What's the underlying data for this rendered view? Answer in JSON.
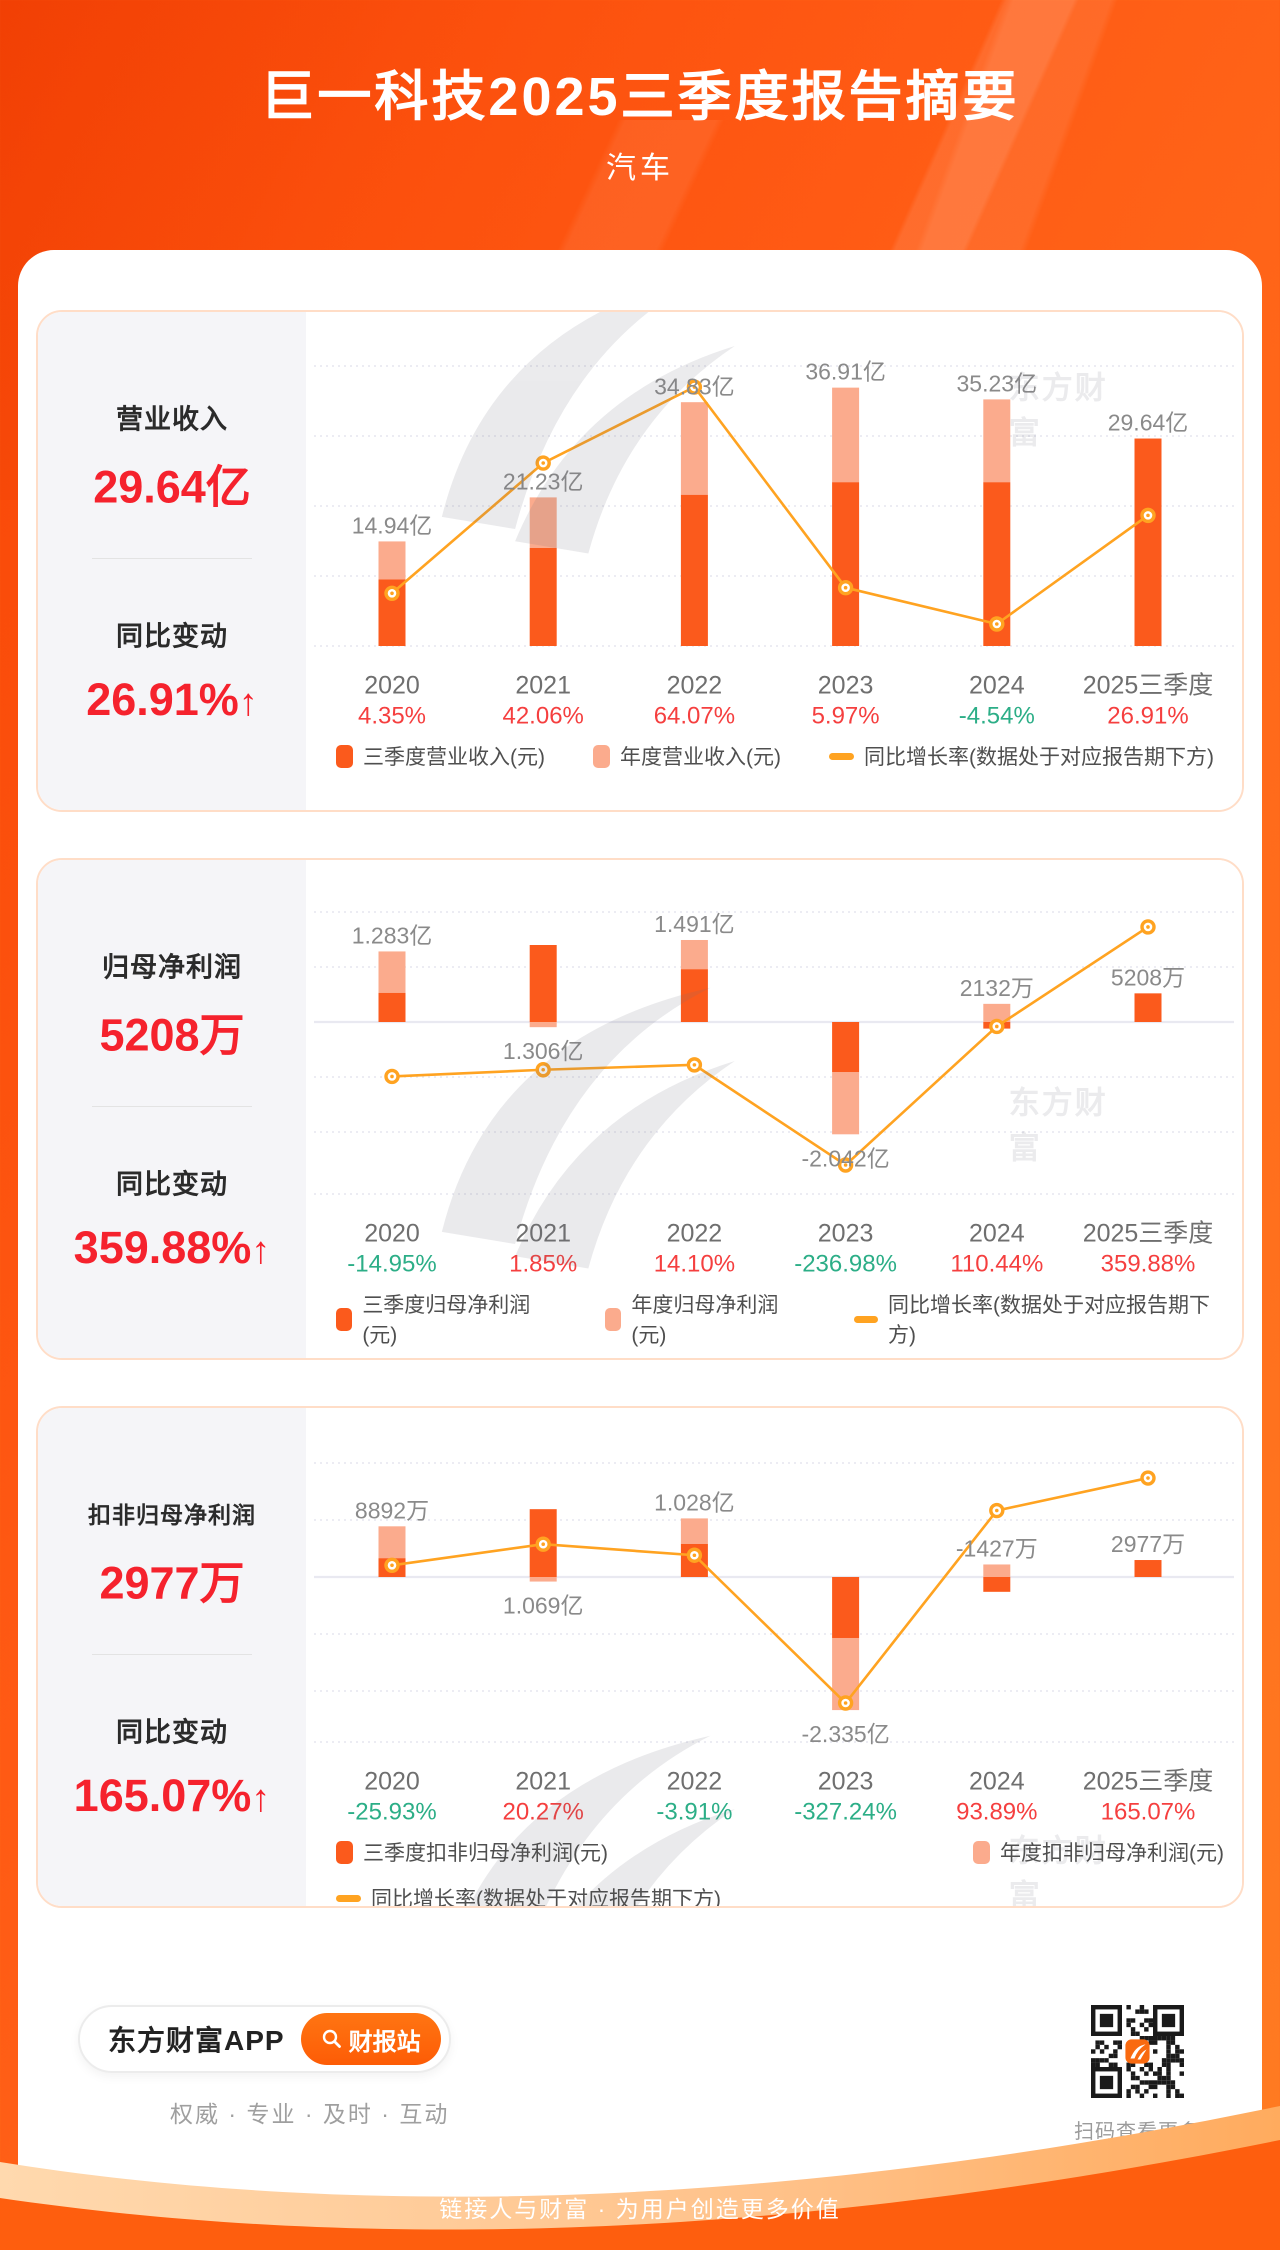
{
  "header": {
    "title": "巨一科技2025三季度报告摘要",
    "subtitle": "汽车"
  },
  "watermark_text": "东方财富",
  "colors": {
    "q3_bar": "#fb5a1c",
    "annual_bar": "#fbab8d",
    "growth_line": "#ffa321",
    "red": "#f53f3f",
    "green": "#2cae87",
    "metric_red": "#f5222d",
    "grid": "#e5e5ef",
    "zero_line": "#e9e9f1"
  },
  "cards": [
    {
      "metric_label": "营业收入",
      "metric_value": "29.64亿",
      "change_label": "同比变动",
      "change_value": "26.91%",
      "change_arrow": "↑"
    },
    {
      "metric_label": "归母净利润",
      "metric_value": "5208万",
      "change_label": "同比变动",
      "change_value": "359.88%",
      "change_arrow": "↑"
    },
    {
      "metric_label": "扣非归母净利润",
      "metric_value": "2977万",
      "change_label": "同比变动",
      "change_value": "165.07%",
      "change_arrow": "↑"
    }
  ],
  "chart_data": [
    {
      "type": "bar+line",
      "name": "revenue-chart",
      "title": "营业收入",
      "unit": "亿元",
      "categories": [
        "2020",
        "2021",
        "2022",
        "2023",
        "2024",
        "2025三季度"
      ],
      "series": [
        {
          "name": "三季度营业收入(元)",
          "role": "q3_bar",
          "values": [
            9.5,
            14.0,
            21.6,
            23.4,
            23.4,
            29.64
          ],
          "estimated_from_pixels": true
        },
        {
          "name": "年度营业收入(元)",
          "role": "annual_bar",
          "values": [
            14.94,
            21.23,
            34.83,
            36.91,
            35.23,
            null
          ]
        },
        {
          "name": "同比增长率(数据处于对应报告期下方)",
          "role": "growth_line_pct",
          "values": [
            4.35,
            42.06,
            64.07,
            5.97,
            -4.54,
            26.91
          ]
        }
      ],
      "bar_segments": {
        "q3": [
          [
            0,
            9.5
          ],
          [
            0,
            14.0
          ],
          [
            0,
            21.6
          ],
          [
            0,
            23.4
          ],
          [
            0,
            23.4
          ],
          [
            0,
            29.64
          ]
        ],
        "annual": [
          [
            9.5,
            14.94
          ],
          [
            14.0,
            21.23
          ],
          [
            21.6,
            34.83
          ],
          [
            23.4,
            36.91
          ],
          [
            23.4,
            35.23
          ],
          null
        ]
      },
      "bar_labels": [
        {
          "text": "14.94亿",
          "pos": "above"
        },
        {
          "text": "21.23亿",
          "pos": "above"
        },
        {
          "text": "34.83亿",
          "pos": "above"
        },
        {
          "text": "36.91亿",
          "pos": "above"
        },
        {
          "text": "35.23亿",
          "pos": "above"
        },
        {
          "text": "29.64亿",
          "pos": "above"
        }
      ],
      "growth_labels": [
        {
          "text": "4.35%",
          "tone": "red"
        },
        {
          "text": "42.06%",
          "tone": "red"
        },
        {
          "text": "64.07%",
          "tone": "red"
        },
        {
          "text": "5.97%",
          "tone": "red"
        },
        {
          "text": "-4.54%",
          "tone": "green"
        },
        {
          "text": "26.91%",
          "tone": "red"
        }
      ],
      "axis": {
        "bar_gridlines": [
          10,
          20,
          30,
          40
        ],
        "bar_min": 0,
        "bar_max": 42,
        "secondary_growth_axis_hidden": true
      },
      "legend_layout": "row",
      "legend": [
        {
          "label": "三季度营业收入(元)",
          "swatch": "q3_bar"
        },
        {
          "label": "年度营业收入(元)",
          "swatch": "annual_bar"
        },
        {
          "label": "同比增长率(数据处于对应报告期下方)",
          "swatch": "line"
        }
      ]
    },
    {
      "type": "bar+line",
      "name": "net-profit-chart",
      "title": "归母净利润",
      "unit": "亿元",
      "categories": [
        "2020",
        "2021",
        "2022",
        "2023",
        "2024",
        "2025三季度"
      ],
      "series": [
        {
          "name": "三季度归母净利润(元)",
          "role": "q3_bar",
          "values": [
            0.53,
            1.4,
            0.96,
            -0.91,
            -0.12,
            0.5208
          ],
          "estimated_from_pixels": true
        },
        {
          "name": "年度归母净利润(元)",
          "role": "annual_bar",
          "values": [
            1.283,
            1.306,
            1.491,
            -2.042,
            0.2132,
            null
          ]
        },
        {
          "name": "同比增长率(数据处于对应报告期下方)",
          "role": "growth_line_pct",
          "values": [
            -14.95,
            1.85,
            14.1,
            -236.98,
            110.44,
            359.88
          ]
        }
      ],
      "bar_segments": {
        "q3": [
          [
            0,
            0.53
          ],
          [
            0,
            1.4
          ],
          [
            0,
            0.96
          ],
          [
            -0.91,
            0
          ],
          [
            -0.12,
            0
          ],
          [
            0,
            0.5208
          ]
        ],
        "annual": [
          [
            0.53,
            1.283
          ],
          [
            -0.094,
            0
          ],
          [
            0.96,
            1.491
          ],
          [
            -2.042,
            -0.91
          ],
          [
            0,
            0.33
          ],
          null
        ]
      },
      "bar_labels": [
        {
          "text": "1.283亿",
          "pos": "above"
        },
        {
          "text": "1.306亿",
          "pos": "below"
        },
        {
          "text": "1.491亿",
          "pos": "above"
        },
        {
          "text": "-2.042亿",
          "pos": "below"
        },
        {
          "text": "2132万",
          "pos": "above"
        },
        {
          "text": "5208万",
          "pos": "above"
        }
      ],
      "growth_labels": [
        {
          "text": "-14.95%",
          "tone": "green"
        },
        {
          "text": "1.85%",
          "tone": "red"
        },
        {
          "text": "14.10%",
          "tone": "red"
        },
        {
          "text": "-236.98%",
          "tone": "green"
        },
        {
          "text": "110.44%",
          "tone": "red"
        },
        {
          "text": "359.88%",
          "tone": "red"
        }
      ],
      "axis": {
        "bar_gridlines": [
          -2,
          -1,
          1,
          2
        ],
        "bar_min": -3.1,
        "bar_max": 2.9,
        "secondary_growth_axis_hidden": true
      },
      "legend_layout": "row",
      "legend": [
        {
          "label": "三季度归母净利润(元)",
          "swatch": "q3_bar"
        },
        {
          "label": "年度归母净利润(元)",
          "swatch": "annual_bar"
        },
        {
          "label": "同比增长率(数据处于对应报告期下方)",
          "swatch": "line"
        }
      ]
    },
    {
      "type": "bar+line",
      "name": "non-gaap-profit-chart",
      "title": "扣非归母净利润",
      "unit": "亿元",
      "categories": [
        "2020",
        "2021",
        "2022",
        "2023",
        "2024",
        "2025三季度"
      ],
      "series": [
        {
          "name": "三季度扣非归母净利润(元)",
          "role": "q3_bar",
          "values": [
            0.33,
            1.19,
            0.58,
            -1.07,
            -0.26,
            0.2977
          ],
          "estimated_from_pixels": true
        },
        {
          "name": "年度扣非归母净利润(元)",
          "role": "annual_bar",
          "values": [
            0.8892,
            1.069,
            1.028,
            -2.335,
            -0.1427,
            null
          ]
        },
        {
          "name": "同比增长率(数据处于对应报告期下方)",
          "role": "growth_line_pct",
          "values": [
            -25.93,
            20.27,
            -3.91,
            -327.24,
            93.89,
            165.07
          ]
        }
      ],
      "bar_segments": {
        "q3": [
          [
            0,
            0.33
          ],
          [
            0,
            1.19
          ],
          [
            0,
            0.58
          ],
          [
            -1.07,
            0
          ],
          [
            -0.26,
            0
          ],
          [
            0,
            0.2977
          ]
        ],
        "annual": [
          [
            0.33,
            0.8892
          ],
          [
            -0.08,
            0
          ],
          [
            0.58,
            1.028
          ],
          [
            -2.335,
            -1.07
          ],
          [
            0,
            0.22
          ],
          null
        ]
      },
      "bar_labels": [
        {
          "text": "8892万",
          "pos": "above"
        },
        {
          "text": "1.069亿",
          "pos": "below"
        },
        {
          "text": "1.028亿",
          "pos": "above"
        },
        {
          "text": "-2.335亿",
          "pos": "below"
        },
        {
          "text": "-1427万",
          "pos": "above"
        },
        {
          "text": "2977万",
          "pos": "above"
        }
      ],
      "growth_labels": [
        {
          "text": "-25.93%",
          "tone": "green"
        },
        {
          "text": "20.27%",
          "tone": "red"
        },
        {
          "text": "-3.91%",
          "tone": "green"
        },
        {
          "text": "-327.24%",
          "tone": "green"
        },
        {
          "text": "93.89%",
          "tone": "red"
        },
        {
          "text": "165.07%",
          "tone": "red"
        }
      ],
      "axis": {
        "bar_gridlines": [
          -2,
          -1,
          1,
          2
        ],
        "bar_min": -3.0,
        "bar_max": 2.9,
        "secondary_growth_axis_hidden": true
      },
      "legend_layout": "two-row",
      "legend": [
        {
          "label": "三季度扣非归母净利润(元)",
          "swatch": "q3_bar"
        },
        {
          "label": "年度扣非归母净利润(元)",
          "swatch": "annual_bar"
        },
        {
          "label": "同比增长率(数据处于对应报告期下方)",
          "swatch": "line"
        }
      ]
    }
  ],
  "footer": {
    "app_name": "东方财富APP",
    "app_button": "财报站",
    "tagline": "权威 · 专业 · 及时 · 互动",
    "qr_caption": "扫码查看更多",
    "bottom_slogan": "链接人与财富 · 为用户创造更多价值"
  }
}
